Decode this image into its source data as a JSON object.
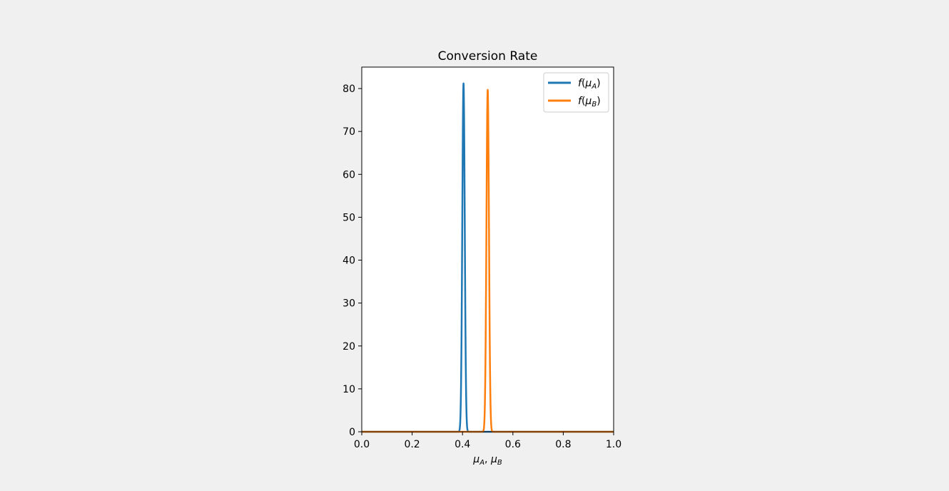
{
  "chart_data": {
    "type": "line",
    "title": "Conversion Rate",
    "xlabel": "μ_A,  μ_B",
    "ylabel": "",
    "xlim": [
      0.0,
      1.0
    ],
    "ylim": [
      0,
      85
    ],
    "xticks": [
      0.0,
      0.2,
      0.4,
      0.6,
      0.8,
      1.0
    ],
    "xtick_labels": [
      "0.0",
      "0.2",
      "0.4",
      "0.6",
      "0.8",
      "1.0"
    ],
    "yticks": [
      0,
      10,
      20,
      30,
      40,
      50,
      60,
      70,
      80
    ],
    "ytick_labels": [
      "0",
      "10",
      "20",
      "30",
      "40",
      "50",
      "60",
      "70",
      "80"
    ],
    "grid": false,
    "legend_position": "top-right",
    "series": [
      {
        "name": "f(μ_A)",
        "color": "#1f77b4",
        "distribution": "normal-peak",
        "peak_x": 0.404,
        "peak_y": 81.2,
        "sigma": 0.0049
      },
      {
        "name": "f(μ_B)",
        "color": "#ff7f0e",
        "distribution": "normal-peak",
        "peak_x": 0.5,
        "peak_y": 79.7,
        "sigma": 0.005
      }
    ]
  }
}
